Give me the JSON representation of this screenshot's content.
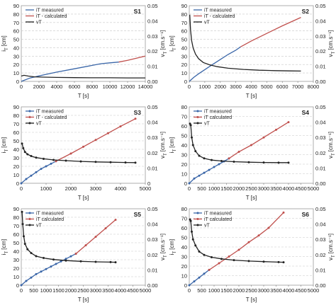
{
  "chart_data": [
    {
      "panel": "S1",
      "type": "line",
      "xlabel": "T [s]",
      "ylabel_left": "i",
      "ylabel_left_sub": "T",
      "ylabel_left_unit": "[cm]",
      "ylabel_right": "v",
      "ylabel_right_sub": "T",
      "ylabel_right_unit": "[cm.s⁻¹]",
      "xlim": [
        0,
        14000
      ],
      "xticks": [
        "0",
        "2000",
        "4000",
        "6000",
        "8000",
        "10000",
        "12000",
        "14000"
      ],
      "ylim_left": [
        0,
        90
      ],
      "yticks_left": [
        "0",
        "10",
        "20",
        "30",
        "40",
        "50",
        "60",
        "70",
        "80",
        "90"
      ],
      "ylim_right": [
        0,
        0.05
      ],
      "yticks_right": [
        "0.00",
        "0.01",
        "0.02",
        "0.03",
        "0.04",
        "0.05"
      ],
      "legend": [
        "iT measured",
        "iT - calculated",
        "vT"
      ],
      "legend_position": "top-left",
      "markers": false,
      "grid": "horizontal-dashed",
      "series": [
        {
          "name": "iT measured",
          "axis": "left",
          "color": "#3a66a8",
          "x": [
            0,
            1000,
            2000,
            4000,
            6000,
            8000,
            9000,
            10000,
            11000
          ],
          "y": [
            0,
            4,
            6.5,
            11,
            15,
            19,
            21,
            22,
            23
          ]
        },
        {
          "name": "iT - calculated",
          "axis": "left",
          "color": "#c0504d",
          "x": [
            11000,
            12000,
            13000,
            14000
          ],
          "y": [
            23,
            25,
            27.5,
            30
          ]
        },
        {
          "name": "vT",
          "axis": "right",
          "color": "#222222",
          "x": [
            0,
            300,
            800,
            1500,
            2500,
            4000,
            6000,
            8000,
            10000,
            12000,
            14000
          ],
          "y": [
            0.0035,
            0.004,
            0.0035,
            0.003,
            0.0028,
            0.0026,
            0.0025,
            0.0024,
            0.0024,
            0.0023,
            0.0023
          ]
        }
      ]
    },
    {
      "panel": "S2",
      "type": "line",
      "xlabel": "T [s]",
      "ylabel_left": "i",
      "ylabel_left_sub": "T",
      "ylabel_left_unit": "[cm]",
      "ylabel_right": "v",
      "ylabel_right_sub": "T",
      "ylabel_right_unit": "[cm.s⁻¹]",
      "xlim": [
        0,
        8000
      ],
      "xticks": [
        "0",
        "1000",
        "2000",
        "3000",
        "4000",
        "5000",
        "6000",
        "7000",
        "8000"
      ],
      "ylim_left": [
        0,
        90
      ],
      "yticks_left": [
        "0",
        "10",
        "20",
        "30",
        "40",
        "50",
        "60",
        "70",
        "80",
        "90"
      ],
      "ylim_right": [
        0,
        0.05
      ],
      "yticks_right": [
        "0.00",
        "0.01",
        "0.02",
        "0.03",
        "0.04",
        "0.05"
      ],
      "legend": [
        "iT measured",
        "iT - calculated",
        "vT"
      ],
      "legend_position": "top-left",
      "markers": false,
      "grid": "horizontal-dashed",
      "series": [
        {
          "name": "iT measured",
          "axis": "left",
          "color": "#3a66a8",
          "x": [
            0,
            300,
            600,
            1000,
            1500,
            2000,
            2500,
            3000,
            3300
          ],
          "y": [
            0,
            5,
            9,
            14,
            20,
            26,
            32,
            37,
            41
          ]
        },
        {
          "name": "iT - calculated",
          "axis": "left",
          "color": "#c0504d",
          "x": [
            3300,
            4000,
            5000,
            6000,
            7200
          ],
          "y": [
            41,
            48,
            57,
            66,
            76
          ]
        },
        {
          "name": "vT",
          "axis": "right",
          "color": "#222222",
          "x": [
            30,
            80,
            150,
            250,
            400,
            600,
            900,
            1300,
            1800,
            2500,
            3500,
            4500,
            5500,
            6500,
            7200
          ],
          "y": [
            0.044,
            0.034,
            0.027,
            0.022,
            0.018,
            0.015,
            0.0125,
            0.011,
            0.0097,
            0.0087,
            0.0079,
            0.0074,
            0.0071,
            0.0069,
            0.0068
          ]
        }
      ]
    },
    {
      "panel": "S3",
      "type": "line",
      "xlabel": "T [s]",
      "ylabel_left": "i",
      "ylabel_left_sub": "T",
      "ylabel_left_unit": "[cm]",
      "ylabel_right": "v",
      "ylabel_right_sub": "T",
      "ylabel_right_unit": "[cm.s⁻¹]",
      "xlim": [
        0,
        5000
      ],
      "xticks": [
        "0",
        "1000",
        "2000",
        "3000",
        "4000",
        "5000"
      ],
      "ylim_left": [
        0,
        90
      ],
      "yticks_left": [
        "0",
        "10",
        "20",
        "30",
        "40",
        "50",
        "60",
        "70",
        "80",
        "90"
      ],
      "ylim_right": [
        0,
        0.05
      ],
      "yticks_right": [
        "0",
        "0.01",
        "0.02",
        "0.03",
        "0.04",
        "0.05"
      ],
      "legend": [
        "iT measured",
        "iT - calculated",
        "vT"
      ],
      "legend_position": "top-left",
      "markers": true,
      "grid": "horizontal-dashed",
      "series": [
        {
          "name": "iT measured",
          "axis": "left",
          "color": "#3a66a8",
          "x": [
            0,
            200,
            400,
            600,
            800,
            1000,
            1200,
            1400
          ],
          "y": [
            0,
            5,
            9,
            13,
            17,
            20,
            23,
            26
          ]
        },
        {
          "name": "iT - calculated",
          "axis": "left",
          "color": "#c0504d",
          "x": [
            1400,
            2000,
            2500,
            3000,
            3500,
            4000,
            4600
          ],
          "y": [
            26,
            35,
            43,
            51,
            59,
            67,
            76
          ]
        },
        {
          "name": "vT",
          "axis": "right",
          "color": "#222222",
          "x": [
            30,
            80,
            150,
            250,
            400,
            600,
            900,
            1300,
            1800,
            2400,
            3000,
            3600,
            4200,
            4600
          ],
          "y": [
            0.026,
            0.023,
            0.0205,
            0.019,
            0.0178,
            0.0168,
            0.016,
            0.0153,
            0.0148,
            0.0143,
            0.014,
            0.0138,
            0.0136,
            0.0135
          ]
        }
      ]
    },
    {
      "panel": "S4",
      "type": "line",
      "xlabel": "T [s]",
      "ylabel_left": "i",
      "ylabel_left_sub": "T",
      "ylabel_left_unit": "[cm]",
      "ylabel_right": "v",
      "ylabel_right_sub": "T",
      "ylabel_right_unit": "[cm.s⁻¹]",
      "xlim": [
        0,
        5000
      ],
      "xticks": [
        "0",
        "500",
        "1000",
        "1500",
        "2000",
        "2500",
        "3000",
        "3500",
        "4000",
        "4500",
        "5000"
      ],
      "ylim_left": [
        0,
        80
      ],
      "yticks_left": [
        "0",
        "10",
        "20",
        "30",
        "40",
        "50",
        "60",
        "70",
        "80"
      ],
      "ylim_right": [
        0,
        0.05
      ],
      "yticks_right": [
        "0.00",
        "0.01",
        "0.02",
        "0.03",
        "0.04",
        "0.05"
      ],
      "legend": [
        "iT measured",
        "iT calculated",
        "vT"
      ],
      "legend_position": "top-left",
      "markers": true,
      "grid": "horizontal-dashed",
      "series": [
        {
          "name": "iT measured",
          "axis": "left",
          "color": "#3a66a8",
          "x": [
            0,
            200,
            400,
            600,
            800,
            1000,
            1200,
            1400,
            1600
          ],
          "y": [
            0,
            5,
            8,
            11,
            14,
            17,
            20,
            23,
            26
          ]
        },
        {
          "name": "iT calculated",
          "axis": "left",
          "color": "#c0504d",
          "x": [
            1600,
            2000,
            2500,
            3000,
            3500,
            4000
          ],
          "y": [
            26,
            33,
            40,
            48,
            56,
            64
          ]
        },
        {
          "name": "vT",
          "axis": "right",
          "color": "#222222",
          "x": [
            30,
            60,
            100,
            150,
            250,
            400,
            600,
            900,
            1300,
            1800,
            2400,
            3000,
            3600,
            4000
          ],
          "y": [
            0.039,
            0.038,
            0.03,
            0.025,
            0.021,
            0.018,
            0.0163,
            0.0152,
            0.0146,
            0.0141,
            0.0138,
            0.0136,
            0.0135,
            0.0135
          ]
        }
      ]
    },
    {
      "panel": "S5",
      "type": "line",
      "xlabel": "T [s]",
      "ylabel_left": "i",
      "ylabel_left_sub": "T",
      "ylabel_left_unit": "[cm]",
      "ylabel_right": "v",
      "ylabel_right_sub": "T",
      "ylabel_right_unit": "[cm.s⁻¹]",
      "xlim": [
        0,
        5000
      ],
      "xticks": [
        "0",
        "500",
        "1000",
        "1500",
        "2000",
        "2500",
        "3000",
        "3500",
        "4000",
        "4500",
        "5000"
      ],
      "ylim_left": [
        0,
        90
      ],
      "yticks_left": [
        "0",
        "10",
        "20",
        "30",
        "40",
        "50",
        "60",
        "70",
        "80",
        "90"
      ],
      "ylim_right": [
        0,
        0.05
      ],
      "yticks_right": [
        "0.00",
        "0.01",
        "0.02",
        "0.03",
        "0.04",
        "0.05"
      ],
      "legend": [
        "iT measured",
        "iT calculated",
        "vT"
      ],
      "legend_position": "top-left",
      "markers": true,
      "grid": "horizontal-dashed",
      "series": [
        {
          "name": "iT measured",
          "axis": "left",
          "color": "#3a66a8",
          "x": [
            0,
            200,
            400,
            600,
            800,
            1000,
            1200,
            1400,
            1600,
            1800,
            2000,
            2200
          ],
          "y": [
            0,
            5,
            9,
            13,
            16,
            19,
            22,
            25,
            28,
            31,
            34,
            37
          ]
        },
        {
          "name": "iT calculated",
          "axis": "left",
          "color": "#c0504d",
          "x": [
            2200,
            2600,
            3000,
            3400,
            3800
          ],
          "y": [
            37,
            47,
            57,
            67,
            77
          ]
        },
        {
          "name": "vT",
          "axis": "right",
          "color": "#222222",
          "x": [
            30,
            60,
            100,
            150,
            250,
            400,
            600,
            900,
            1300,
            1800,
            2400,
            3000,
            3600,
            3800
          ],
          "y": [
            0.048,
            0.04,
            0.032,
            0.027,
            0.0235,
            0.021,
            0.019,
            0.0178,
            0.0168,
            0.0161,
            0.0156,
            0.0153,
            0.0151,
            0.015
          ]
        }
      ]
    },
    {
      "panel": "S6",
      "type": "line",
      "xlabel": "T [s]",
      "ylabel_left": "i",
      "ylabel_left_sub": "T",
      "ylabel_left_unit": "[cm]",
      "ylabel_right": "v",
      "ylabel_right_sub": "T",
      "ylabel_right_unit": "[cm.s⁻¹]",
      "xlim": [
        0,
        5000
      ],
      "xticks": [
        "0",
        "500",
        "1000",
        "1500",
        "2000",
        "2500",
        "3000",
        "3500",
        "4000",
        "4500",
        "5000"
      ],
      "ylim_left": [
        0,
        80
      ],
      "yticks_left": [
        "0",
        "10",
        "20",
        "30",
        "40",
        "50",
        "60",
        "70",
        "80"
      ],
      "ylim_right": [
        0,
        0.05
      ],
      "yticks_right": [
        "0.00",
        "0.01",
        "0.02",
        "0.03",
        "0.04",
        "0.05"
      ],
      "legend": [
        "iT measured",
        "iT calculated",
        "vT"
      ],
      "legend_position": "top-left",
      "markers": true,
      "grid": "horizontal-dashed",
      "series": [
        {
          "name": "iT measured",
          "axis": "left",
          "color": "#3a66a8",
          "x": [
            0,
            200,
            400,
            600,
            800
          ],
          "y": [
            0,
            4,
            8,
            12,
            16
          ]
        },
        {
          "name": "iT calculated",
          "axis": "left",
          "color": "#c0504d",
          "x": [
            800,
            1200,
            1600,
            2000,
            2400,
            2800,
            3200,
            3800
          ],
          "y": [
            16,
            23,
            30,
            37,
            45,
            52,
            60,
            76
          ]
        },
        {
          "name": "vT",
          "axis": "right",
          "color": "#222222",
          "x": [
            30,
            60,
            100,
            150,
            250,
            400,
            600,
            900,
            1300,
            1800,
            2400,
            3000,
            3600,
            3800
          ],
          "y": [
            0.043,
            0.042,
            0.035,
            0.03,
            0.026,
            0.022,
            0.0198,
            0.0183,
            0.0172,
            0.0164,
            0.0158,
            0.0154,
            0.0151,
            0.015
          ]
        }
      ]
    }
  ]
}
